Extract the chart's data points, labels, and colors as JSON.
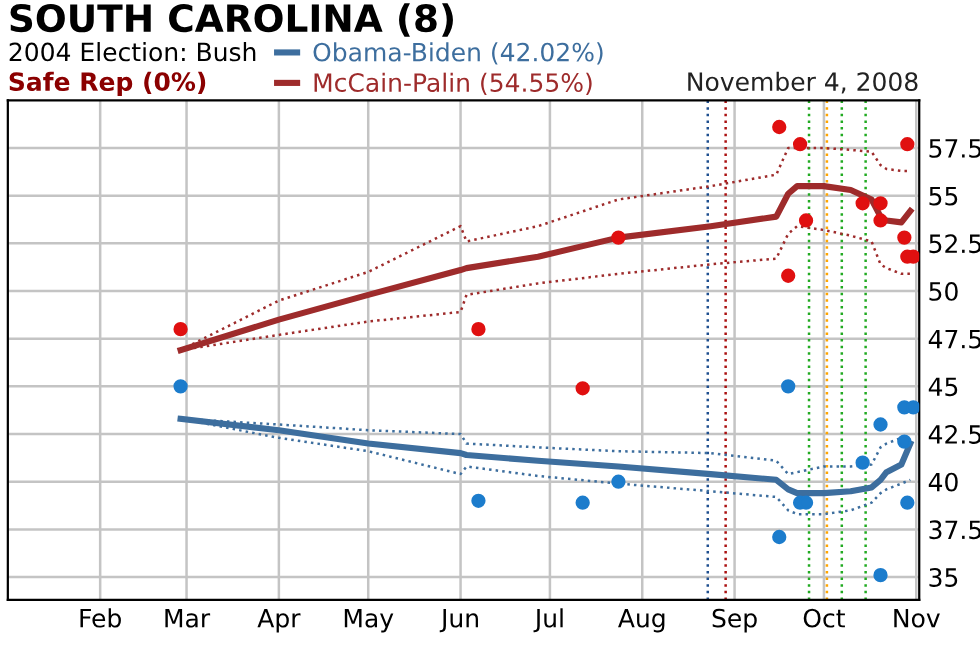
{
  "chart_data": {
    "type": "line",
    "title": "SOUTH CAROLINA (8)",
    "subtitle": "2004 Election: Bush",
    "annotations": [
      "Safe Rep (0%)",
      "November 4, 2008"
    ],
    "xlim": [
      "2008-01-01",
      "2008-11-02"
    ],
    "xticks": [
      {
        "value": "2008-02-01",
        "label": "Feb"
      },
      {
        "value": "2008-03-01",
        "label": "Mar"
      },
      {
        "value": "2008-04-01",
        "label": "Apr"
      },
      {
        "value": "2008-05-01",
        "label": "May"
      },
      {
        "value": "2008-06-01",
        "label": "Jun"
      },
      {
        "value": "2008-07-01",
        "label": "Jul"
      },
      {
        "value": "2008-08-01",
        "label": "Aug"
      },
      {
        "value": "2008-09-01",
        "label": "Sep"
      },
      {
        "value": "2008-10-01",
        "label": "Oct"
      },
      {
        "value": "2008-11-01",
        "label": "Nov"
      }
    ],
    "ylim": [
      33.8,
      60
    ],
    "yticks": [
      35,
      37.5,
      40,
      42.5,
      45,
      47.5,
      50,
      52.5,
      55,
      57.5
    ],
    "grid": true,
    "legend": "top",
    "line_style": "solid",
    "ref_lines": [
      {
        "axis": "x",
        "value": "2008-08-23",
        "color": "#1f4f8f",
        "line_style": "dotted"
      },
      {
        "axis": "x",
        "value": "2008-08-29",
        "color": "#aa1111",
        "line_style": "dotted"
      },
      {
        "axis": "x",
        "value": "2008-09-26",
        "color": "#22aa22",
        "line_style": "dotted"
      },
      {
        "axis": "x",
        "value": "2008-10-02",
        "color": "#ffa500",
        "line_style": "dotted"
      },
      {
        "axis": "x",
        "value": "2008-10-07",
        "color": "#22aa22",
        "line_style": "dotted"
      },
      {
        "axis": "x",
        "value": "2008-10-15",
        "color": "#22aa22",
        "line_style": "dotted"
      }
    ],
    "series": [
      {
        "line_style": "dotted",
        "color": "#3d6e9e",
        "x": [
          "2008-02-28",
          "2008-04-01",
          "2008-05-01",
          "2008-06-01",
          "2008-06-03",
          "2008-06-27",
          "2008-07-24",
          "2008-08-24",
          "2008-09-15",
          "2008-09-19",
          "2008-09-22",
          "2008-10-01",
          "2008-10-10",
          "2008-10-17",
          "2008-10-20",
          "2008-10-22",
          "2008-10-27",
          "2008-10-30"
        ],
        "values": [
          43.3,
          43.0,
          42.7,
          42.5,
          42.0,
          41.8,
          41.6,
          41.5,
          41.1,
          40.4,
          40.5,
          40.8,
          40.8,
          40.9,
          41.8,
          42.0,
          42.3,
          42.2
        ]
      },
      {
        "line_style": "dotted",
        "color": "#3d6e9e",
        "x": [
          "2008-02-28",
          "2008-04-01",
          "2008-05-01",
          "2008-06-01",
          "2008-06-03",
          "2008-06-27",
          "2008-07-24",
          "2008-08-24",
          "2008-09-15",
          "2008-09-19",
          "2008-09-22",
          "2008-10-01",
          "2008-10-10",
          "2008-10-17",
          "2008-10-20",
          "2008-10-22",
          "2008-10-27",
          "2008-10-30"
        ],
        "values": [
          43.3,
          42.3,
          41.6,
          40.4,
          40.8,
          40.3,
          39.9,
          39.5,
          39.2,
          38.5,
          38.3,
          38.3,
          38.5,
          38.9,
          39.4,
          39.6,
          39.9,
          40.1
        ]
      },
      {
        "line_style": "dotted",
        "color": "#9e2b2b",
        "x": [
          "2008-02-28",
          "2008-04-01",
          "2008-05-01",
          "2008-06-01",
          "2008-06-03",
          "2008-06-27",
          "2008-07-24",
          "2008-08-24",
          "2008-09-15",
          "2008-09-19",
          "2008-09-22",
          "2008-10-01",
          "2008-10-10",
          "2008-10-17",
          "2008-10-20",
          "2008-10-22",
          "2008-10-27",
          "2008-10-30"
        ],
        "values": [
          46.9,
          49.5,
          51.0,
          53.4,
          52.6,
          53.4,
          54.8,
          55.5,
          56.1,
          57.5,
          57.5,
          57.5,
          57.4,
          57.3,
          56.6,
          56.4,
          56.3,
          56.3
        ]
      },
      {
        "line_style": "dotted",
        "color": "#9e2b2b",
        "x": [
          "2008-02-28",
          "2008-04-01",
          "2008-05-01",
          "2008-06-01",
          "2008-06-03",
          "2008-06-27",
          "2008-07-24",
          "2008-08-24",
          "2008-09-15",
          "2008-09-19",
          "2008-09-22",
          "2008-10-01",
          "2008-10-10",
          "2008-10-17",
          "2008-10-20",
          "2008-10-22",
          "2008-10-27",
          "2008-10-30"
        ],
        "values": [
          46.9,
          47.7,
          48.4,
          48.9,
          49.8,
          50.4,
          50.9,
          51.4,
          51.7,
          53.0,
          53.4,
          53.2,
          52.9,
          52.6,
          51.4,
          51.2,
          50.9,
          50.9
        ]
      },
      {
        "name": "Obama-Biden (42.02%)",
        "color": "#3d6e9e",
        "x": [
          "2008-02-28",
          "2008-04-01",
          "2008-05-01",
          "2008-06-01",
          "2008-06-03",
          "2008-06-27",
          "2008-07-24",
          "2008-08-24",
          "2008-09-15",
          "2008-09-19",
          "2008-09-22",
          "2008-10-01",
          "2008-10-10",
          "2008-10-17",
          "2008-10-20",
          "2008-10-22",
          "2008-10-27",
          "2008-10-30"
        ],
        "values": [
          43.3,
          42.7,
          42.0,
          41.5,
          41.4,
          41.1,
          40.8,
          40.4,
          40.1,
          39.6,
          39.4,
          39.4,
          39.5,
          39.7,
          40.1,
          40.5,
          40.9,
          42.0
        ]
      },
      {
        "name": "McCain-Palin (54.55%)",
        "color": "#9e2b2b",
        "x": [
          "2008-02-28",
          "2008-04-01",
          "2008-05-01",
          "2008-06-01",
          "2008-06-03",
          "2008-06-27",
          "2008-07-24",
          "2008-08-24",
          "2008-09-15",
          "2008-09-19",
          "2008-09-22",
          "2008-10-01",
          "2008-10-10",
          "2008-10-17",
          "2008-10-20",
          "2008-10-22",
          "2008-10-27",
          "2008-10-30"
        ],
        "values": [
          46.9,
          48.5,
          49.8,
          51.1,
          51.2,
          51.8,
          52.8,
          53.4,
          53.9,
          55.1,
          55.5,
          55.5,
          55.3,
          54.8,
          53.9,
          53.7,
          53.6,
          54.2
        ]
      },
      {
        "type": "scatter",
        "color": "#1c7ccc",
        "marker": "circle",
        "x": [
          "2008-02-28",
          "2008-06-07",
          "2008-09-16",
          "2008-09-19",
          "2008-09-23",
          "2008-10-14",
          "2008-10-20",
          "2008-10-20",
          "2008-10-28",
          "2008-10-28",
          "2008-10-29",
          "2008-07-12",
          "2008-07-24",
          "2008-09-25",
          "2008-10-31"
        ],
        "values": [
          45.0,
          39.0,
          37.1,
          45.0,
          38.9,
          41.0,
          43.0,
          35.1,
          43.9,
          42.1,
          38.9,
          38.9,
          40.0,
          38.9,
          43.9
        ]
      },
      {
        "type": "scatter",
        "color": "#e01010",
        "marker": "circle",
        "x": [
          "2008-02-28",
          "2008-06-07",
          "2008-09-16",
          "2008-09-19",
          "2008-09-23",
          "2008-10-14",
          "2008-10-20",
          "2008-10-20",
          "2008-10-28",
          "2008-10-29",
          "2008-10-29",
          "2008-07-12",
          "2008-07-24",
          "2008-09-25",
          "2008-10-31"
        ],
        "values": [
          48.0,
          48.0,
          58.6,
          50.8,
          57.7,
          54.6,
          54.6,
          53.7,
          52.8,
          51.8,
          57.7,
          44.9,
          52.8,
          53.7,
          51.8
        ]
      }
    ]
  }
}
